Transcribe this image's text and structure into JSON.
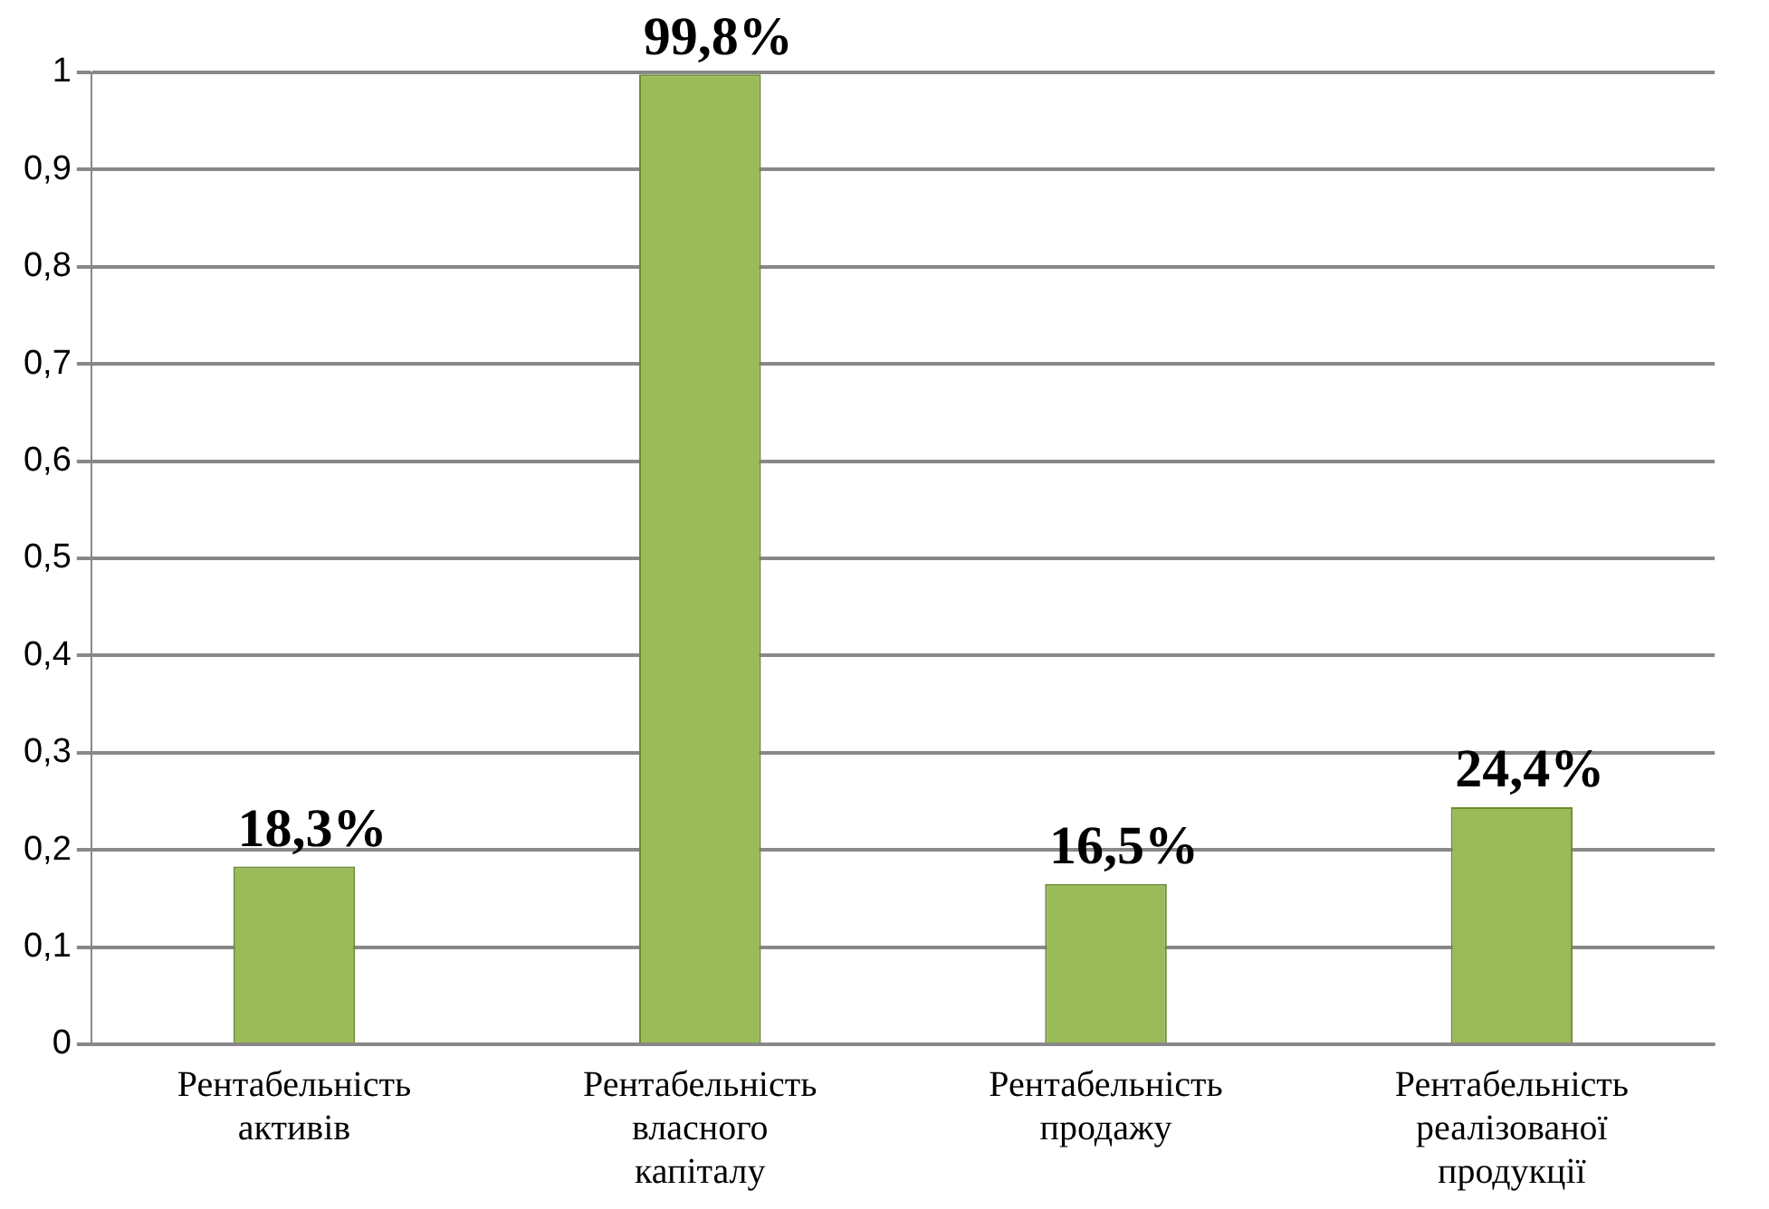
{
  "chart_data": {
    "type": "bar",
    "categories": [
      "Рентабельність активів",
      "Рентабельність власного капіталу",
      "Рентабельність продажу",
      "Рентабельність реалізованої продукції"
    ],
    "values": [
      0.183,
      0.998,
      0.165,
      0.244
    ],
    "color": "#9bbb59",
    "value_labels": [
      "18,3%",
      "99,8%",
      "16,5%",
      "24,4%"
    ],
    "ylim": [
      0,
      1
    ],
    "yticks": [
      0,
      {
        "value": 0.1,
        "label": "0,1"
      },
      {
        "value": 0.2,
        "label": "0,2"
      },
      {
        "value": 0.3,
        "label": "0,3"
      },
      {
        "value": 0.4,
        "label": "0,4"
      },
      {
        "value": 0.5,
        "label": "0,5"
      },
      {
        "value": 0.6,
        "label": "0,6"
      },
      {
        "value": 0.7,
        "label": "0,7"
      },
      {
        "value": 0.8,
        "label": "0,8"
      },
      {
        "value": 0.9,
        "label": "0,9"
      },
      1
    ],
    "grid": "y",
    "legend": false
  }
}
